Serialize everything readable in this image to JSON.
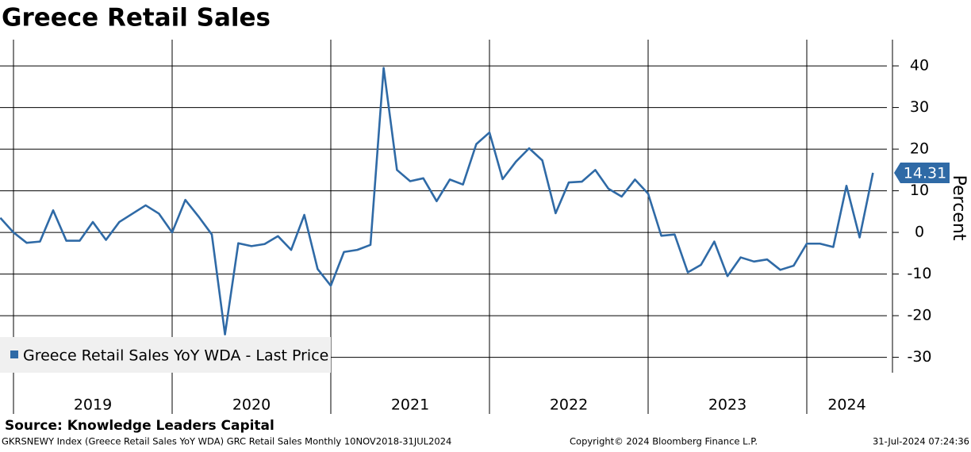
{
  "chart_data": {
    "type": "line",
    "title": "Greece Retail Sales",
    "y_label": "Percent",
    "source": "Source: Knowledge Leaders Capital",
    "footer_left": "GKRSNEWY Index (Greece Retail Sales YoY WDA) GRC Retail Sales  Monthly 10NOV2018-31JUL2024",
    "footer_center": "Copyright© 2024 Bloomberg Finance L.P.",
    "footer_right": "31-Jul-2024 07:24:36",
    "x": [
      2018.917,
      2019.0,
      2019.083,
      2019.167,
      2019.25,
      2019.333,
      2019.417,
      2019.5,
      2019.583,
      2019.667,
      2019.75,
      2019.833,
      2019.917,
      2020.0,
      2020.083,
      2020.167,
      2020.25,
      2020.333,
      2020.417,
      2020.5,
      2020.583,
      2020.667,
      2020.75,
      2020.833,
      2020.917,
      2021.0,
      2021.083,
      2021.167,
      2021.25,
      2021.333,
      2021.417,
      2021.5,
      2021.583,
      2021.667,
      2021.75,
      2021.833,
      2021.917,
      2022.0,
      2022.083,
      2022.167,
      2022.25,
      2022.333,
      2022.417,
      2022.5,
      2022.583,
      2022.667,
      2022.75,
      2022.833,
      2022.917,
      2023.0,
      2023.083,
      2023.167,
      2023.25,
      2023.333,
      2023.417,
      2023.5,
      2023.583,
      2023.667,
      2023.75,
      2023.833,
      2023.917,
      2024.0,
      2024.083,
      2024.167,
      2024.25,
      2024.333,
      2024.417
    ],
    "series": [
      {
        "name": "Greece Retail Sales YoY WDA - Last Price",
        "color": "#2f6aa6",
        "values": [
          3.5,
          0,
          -2.5,
          -2.2,
          5.3,
          -2,
          -2,
          2.5,
          -1.8,
          2.5,
          4.5,
          6.5,
          4.5,
          0,
          7.8,
          3.8,
          -0.5,
          -24.5,
          -2.6,
          -3.3,
          -2.8,
          -0.9,
          -4.2,
          4.2,
          -8.8,
          -12.8,
          -4.7,
          -4.2,
          -3,
          39.5,
          15,
          12.3,
          13,
          7.5,
          12.7,
          11.5,
          21.2,
          24,
          12.8,
          17,
          20.2,
          17.3,
          4.6,
          12,
          12.2,
          15,
          10.5,
          8.6,
          12.7,
          9.3,
          -0.8,
          -0.5,
          -9.6,
          -7.8,
          -2.2,
          -10.5,
          -6,
          -7,
          -6.5,
          -9,
          -8,
          -2.7,
          -2.7,
          -3.5,
          11.2,
          -1.2,
          14.31
        ]
      }
    ],
    "xlim": [
      2018.915,
      2024.505
    ],
    "xticks": [
      2019,
      2020,
      2021,
      2022,
      2023,
      2024
    ],
    "ylim": [
      -33.7,
      46.3
    ],
    "yticks": [
      -30,
      -20,
      -10,
      0,
      10,
      20,
      30,
      40
    ],
    "grid": true
  }
}
